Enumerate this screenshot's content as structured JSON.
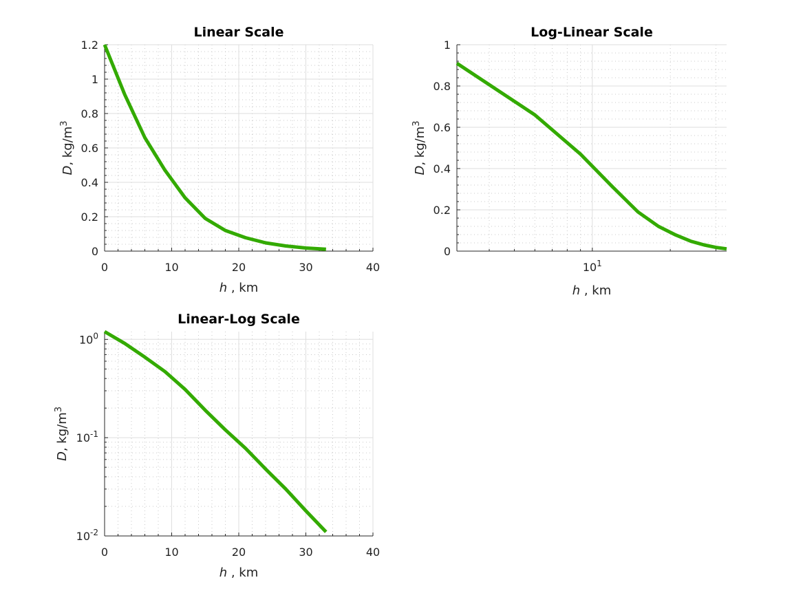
{
  "colors": {
    "line": "#33aa00",
    "axis": "#262626",
    "grid": "#dedede",
    "minor_grid": "#c8c8c8"
  },
  "chart_data": [
    {
      "type": "line",
      "title": "Linear Scale",
      "xlabel_var": "h",
      "xlabel_unit": " , km",
      "ylabel_var": "D",
      "ylabel_unit": ", kg/m",
      "ylabel_sup": "3",
      "xscale": "linear",
      "yscale": "linear",
      "xlim": [
        0,
        40
      ],
      "ylim": [
        0,
        1.2
      ],
      "xticks": [
        0,
        10,
        20,
        30,
        40
      ],
      "xtick_labels": [
        "0",
        "10",
        "20",
        "30",
        "40"
      ],
      "yticks": [
        0,
        0.2,
        0.4,
        0.6,
        0.8,
        1,
        1.2
      ],
      "ytick_labels": [
        "0",
        "0.2",
        "0.4",
        "0.6",
        "0.8",
        "1",
        "1.2"
      ],
      "grid": true,
      "minor_grid": true,
      "series": [
        {
          "x": [
            0,
            3,
            6,
            9,
            12,
            15,
            18,
            21,
            24,
            27,
            30,
            33
          ],
          "y": [
            1.2,
            0.91,
            0.66,
            0.47,
            0.31,
            0.19,
            0.12,
            0.078,
            0.048,
            0.03,
            0.018,
            0.011
          ]
        }
      ]
    },
    {
      "type": "line",
      "title": "Log-Linear Scale",
      "xlabel_var": "h",
      "xlabel_unit": " , km",
      "ylabel_var": "D",
      "ylabel_unit": ", kg/m",
      "ylabel_sup": "3",
      "xscale": "log",
      "yscale": "linear",
      "xlim": [
        3,
        33
      ],
      "ylim": [
        0,
        1
      ],
      "xticks": [
        10
      ],
      "xtick_labels": [
        {
          "base": "10",
          "exp": "1"
        }
      ],
      "yticks": [
        0,
        0.2,
        0.4,
        0.6,
        0.8,
        1
      ],
      "ytick_labels": [
        "0",
        "0.2",
        "0.4",
        "0.6",
        "0.8",
        "1"
      ],
      "grid": true,
      "minor_grid": true,
      "series": [
        {
          "x": [
            3,
            6,
            9,
            12,
            15,
            18,
            21,
            24,
            27,
            30,
            33
          ],
          "y": [
            0.91,
            0.66,
            0.47,
            0.31,
            0.19,
            0.12,
            0.078,
            0.048,
            0.03,
            0.018,
            0.011
          ]
        }
      ]
    },
    {
      "type": "line",
      "title": "Linear-Log Scale",
      "xlabel_var": "h",
      "xlabel_unit": " , km",
      "ylabel_var": "D",
      "ylabel_unit": ", kg/m",
      "ylabel_sup": "3",
      "xscale": "linear",
      "yscale": "log",
      "xlim": [
        0,
        40
      ],
      "ylim": [
        0.01,
        1.2
      ],
      "xticks": [
        0,
        10,
        20,
        30,
        40
      ],
      "xtick_labels": [
        "0",
        "10",
        "20",
        "30",
        "40"
      ],
      "yticks": [
        0.01,
        0.1,
        1
      ],
      "ytick_labels": [
        {
          "base": "10",
          "exp": "-2"
        },
        {
          "base": "10",
          "exp": "-1"
        },
        {
          "base": "10",
          "exp": "0"
        }
      ],
      "grid": true,
      "minor_grid": true,
      "series": [
        {
          "x": [
            0,
            3,
            6,
            9,
            12,
            15,
            18,
            21,
            24,
            27,
            30,
            33
          ],
          "y": [
            1.2,
            0.91,
            0.66,
            0.47,
            0.31,
            0.19,
            0.12,
            0.078,
            0.048,
            0.03,
            0.018,
            0.011
          ]
        }
      ]
    }
  ]
}
